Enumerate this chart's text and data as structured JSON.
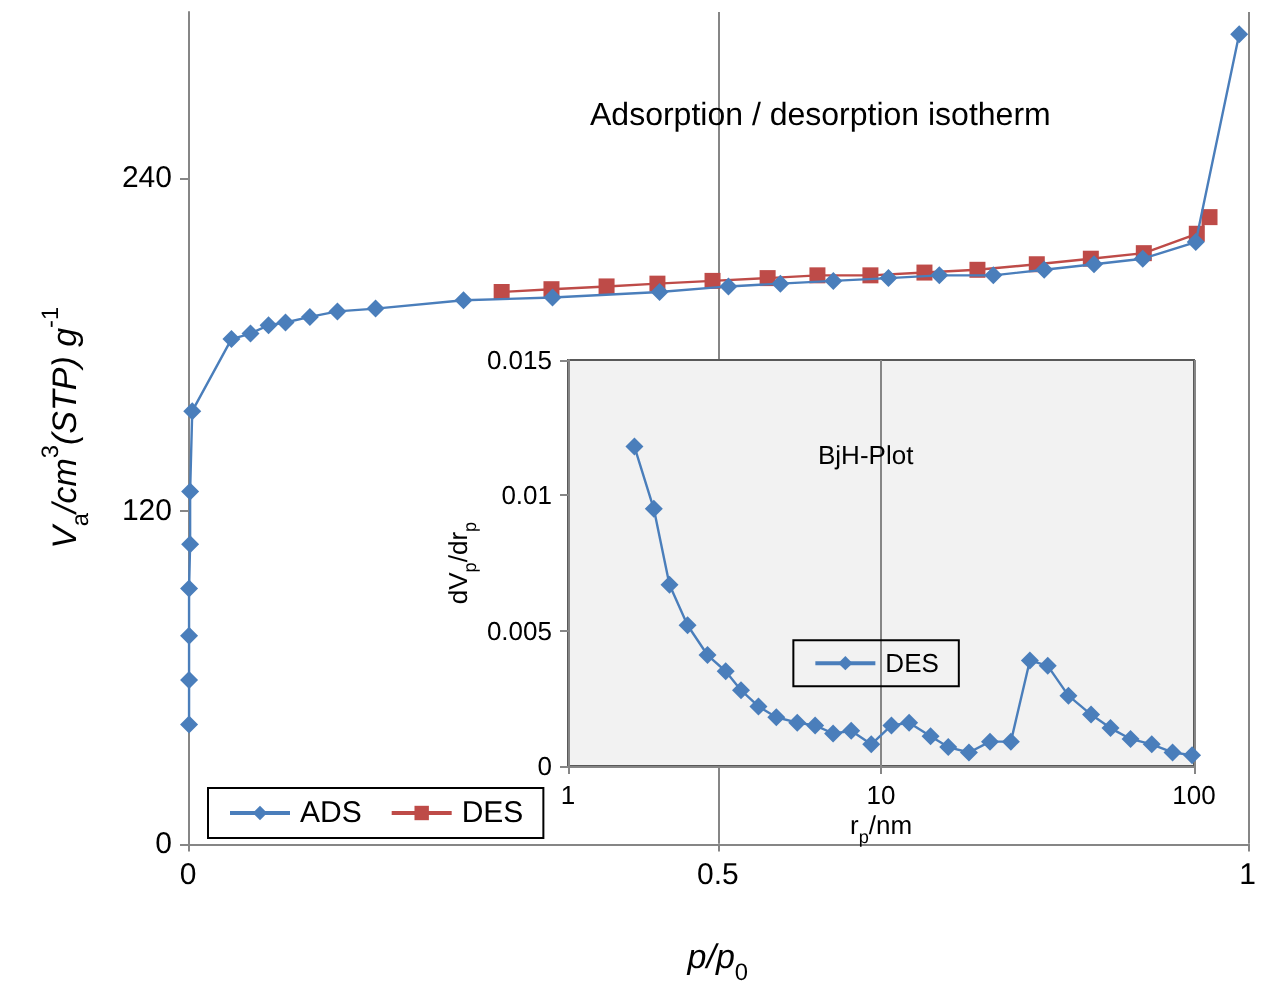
{
  "chart_data": [
    {
      "type": "line",
      "title": "Adsorption / desorption isotherm",
      "xlabel": "p/p$_{0}$",
      "ylabel": "V$_{a}$/cm$^{3}$(STP) g$^{-1}$",
      "xlim": [
        0,
        1
      ],
      "xticks": [
        0,
        0.5,
        1
      ],
      "ylim": [
        0,
        300
      ],
      "yticks": [
        0,
        120,
        240
      ],
      "grid": "x",
      "legend": "bottom left",
      "series": [
        {
          "name": "ADS",
          "color": "#4a7ebb",
          "marker": "diamond",
          "x": [
            0.001,
            0.001,
            0.001,
            0.001,
            0.002,
            0.002,
            0.004,
            0.041,
            0.059,
            0.076,
            0.092,
            0.115,
            0.141,
            0.177,
            0.26,
            0.344,
            0.445,
            0.51,
            0.559,
            0.609,
            0.661,
            0.709,
            0.76,
            0.808,
            0.855,
            0.901,
            0.951,
            0.992
          ],
          "values": [
            43,
            59,
            75,
            92,
            108,
            127,
            156,
            182,
            184,
            187,
            188,
            190,
            192,
            193,
            196,
            197,
            199,
            201,
            202,
            203,
            204,
            205,
            205,
            207,
            209,
            211,
            217,
            292
          ]
        },
        {
          "name": "DES",
          "color": "#be4b48",
          "marker": "square",
          "x": [
            0.296,
            0.343,
            0.395,
            0.443,
            0.495,
            0.547,
            0.594,
            0.644,
            0.695,
            0.745,
            0.801,
            0.852,
            0.902,
            0.952,
            0.964
          ],
          "values": [
            199,
            200,
            201,
            202,
            203,
            204,
            205,
            205,
            206,
            207,
            209,
            211,
            213,
            220,
            226
          ]
        }
      ]
    },
    {
      "type": "line",
      "title": "BjH-Plot",
      "xlabel": "r$_{p}$/nm",
      "ylabel": "dV$_{p}$/dr$_{p}$",
      "log": "x",
      "xlim": [
        1,
        100
      ],
      "xticks": [
        1,
        10,
        100
      ],
      "ylim": [
        0,
        0.015
      ],
      "yticks": [
        0,
        0.005,
        0.01,
        0.015
      ],
      "grid": "x",
      "legend": "center",
      "series": [
        {
          "name": "DES",
          "color": "#4a7ebb",
          "marker": "diamond",
          "x": [
            1.63,
            1.88,
            2.11,
            2.41,
            2.79,
            3.19,
            3.57,
            4.06,
            4.63,
            5.4,
            6.16,
            7.03,
            8.03,
            9.31,
            10.8,
            12.3,
            14.4,
            16.4,
            19.1,
            22.3,
            26.0,
            29.9,
            34.1,
            39.7,
            46.9,
            54.1,
            62.7,
            73.3,
            85.4,
            98.6
          ],
          "values": [
            0.0118,
            0.0095,
            0.0067,
            0.0052,
            0.0041,
            0.0035,
            0.0028,
            0.0022,
            0.0018,
            0.0016,
            0.0015,
            0.0012,
            0.0013,
            0.0008,
            0.0015,
            0.0016,
            0.0011,
            0.0007,
            0.0005,
            0.0009,
            0.0009,
            0.0039,
            0.0037,
            0.0026,
            0.0019,
            0.0014,
            0.001,
            0.0008,
            0.0005,
            0.0004
          ]
        }
      ]
    }
  ]
}
